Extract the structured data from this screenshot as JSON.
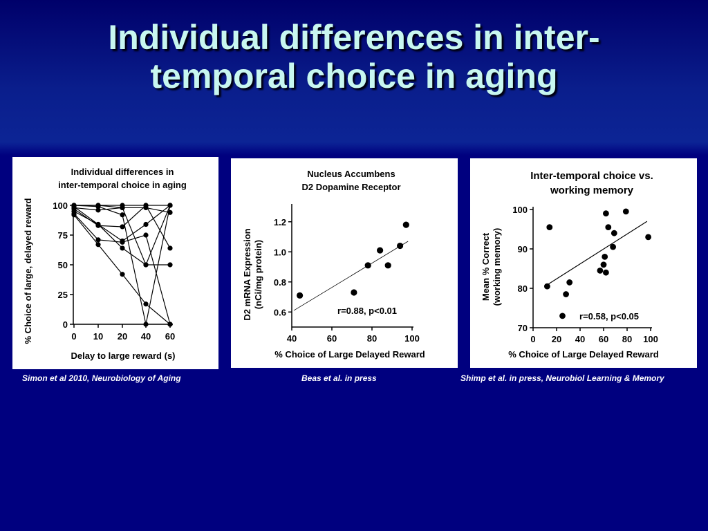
{
  "slide": {
    "title_line1": "Individual differences in inter-",
    "title_line2": "temporal choice in aging"
  },
  "captions": [
    "Simon et al 2010, Neurobiology of Aging",
    "Beas et al. in press",
    "Shimp et al. in press, Neurobiol Learning & Memory"
  ],
  "chart_data": [
    {
      "type": "line",
      "title": "Individual differences in inter-temporal choice in aging",
      "title_lines": [
        "Individual differences in",
        "inter-temporal choice in aging"
      ],
      "xlabel": "Delay to large reward (s)",
      "ylabel": "% Choice of large, delayed reward",
      "categories": [
        "0",
        "10",
        "20",
        "40",
        "60"
      ],
      "ylim": [
        0,
        100
      ],
      "yticks": [
        0,
        25,
        50,
        75,
        100
      ],
      "series": [
        {
          "values": [
            100,
            100,
            100,
            100,
            100
          ]
        },
        {
          "values": [
            98,
            96,
            98,
            98,
            94
          ]
        },
        {
          "values": [
            100,
            100,
            98,
            50,
            50
          ]
        },
        {
          "values": [
            97,
            83,
            82,
            100,
            64
          ]
        },
        {
          "values": [
            95,
            84,
            70,
            84,
            100
          ]
        },
        {
          "values": [
            93,
            71,
            69,
            75,
            0
          ]
        },
        {
          "values": [
            92,
            67,
            42,
            17,
            0
          ]
        },
        {
          "values": [
            100,
            99,
            92,
            0,
            100
          ]
        },
        {
          "values": [
            99,
            84,
            64,
            50,
            100
          ]
        }
      ]
    },
    {
      "type": "scatter",
      "title": "Nucleus Accumbens D2 Dopamine Receptor",
      "title_lines": [
        "Nucleus Accumbens",
        "D2 Dopamine Receptor"
      ],
      "xlabel": "% Choice of Large Delayed Reward",
      "ylabel": "D2 mRNA Expression (nCi/mg protein)",
      "ylabel_lines": [
        "D2 mRNA Expression",
        "(nCi/mg protein)"
      ],
      "xlim": [
        40,
        100
      ],
      "ylim": [
        0.5,
        1.3
      ],
      "xticks": [
        40,
        60,
        80,
        100
      ],
      "yticks": [
        0.6,
        0.8,
        1.0,
        1.2
      ],
      "ytick_labels": [
        "0.6",
        "0.8",
        "1.0",
        "1.2"
      ],
      "x": [
        44,
        71,
        78,
        84,
        88,
        94,
        97
      ],
      "y": [
        0.71,
        0.73,
        0.91,
        1.01,
        0.91,
        1.04,
        1.18
      ],
      "fit_line": {
        "x": [
          41,
          98
        ],
        "y": [
          0.61,
          1.07
        ]
      },
      "annotation": "r=0.88, p<0.01"
    },
    {
      "type": "scatter",
      "title": "Inter-temporal choice vs. working memory",
      "title_lines": [
        "Inter-temporal choice vs.",
        "working memory"
      ],
      "xlabel": "% Choice of Large Delayed Reward",
      "ylabel": "Mean % Correct (working memory)",
      "ylabel_lines": [
        "Mean % Correct",
        "(working memory)"
      ],
      "xlim": [
        0,
        100
      ],
      "ylim": [
        70,
        100
      ],
      "xticks": [
        0,
        20,
        40,
        60,
        80,
        100
      ],
      "yticks": [
        70,
        80,
        90,
        100
      ],
      "x": [
        12,
        14,
        25,
        28,
        31,
        57,
        60,
        61,
        62,
        62,
        64,
        68,
        69,
        79,
        98
      ],
      "y": [
        80.5,
        95.5,
        73,
        78.5,
        81.5,
        84.5,
        86,
        88,
        84,
        99,
        95.5,
        90.5,
        94,
        99.5,
        93
      ],
      "fit_line": {
        "x": [
          10,
          97
        ],
        "y": [
          80.5,
          97
        ]
      },
      "annotation": "r=0.58, p<0.05"
    }
  ]
}
